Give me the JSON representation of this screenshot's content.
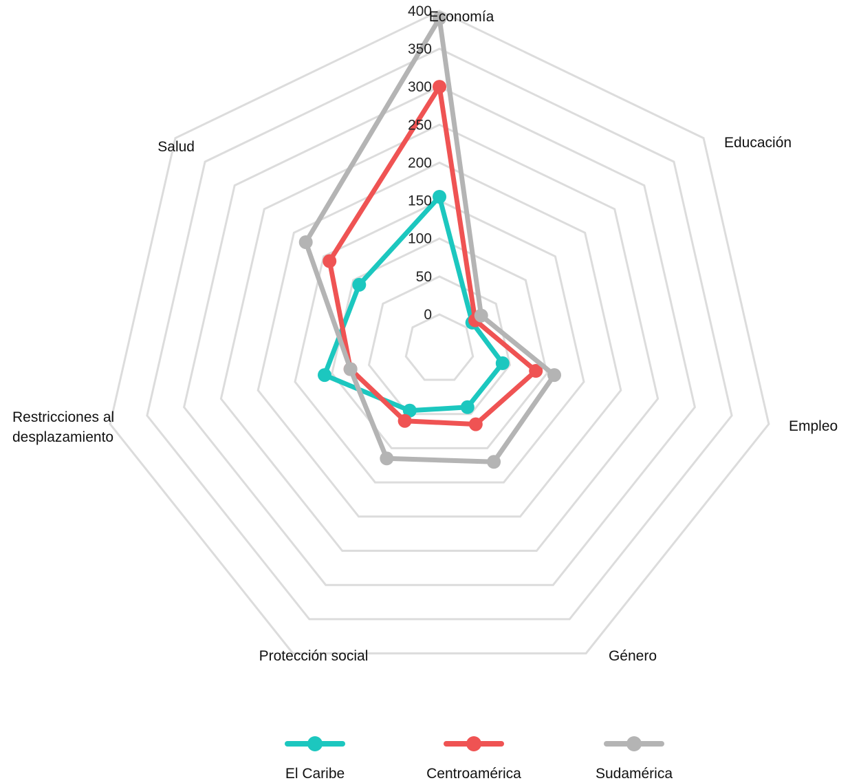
{
  "chart_data": {
    "type": "radar",
    "axes": [
      "Economía",
      "Educación",
      "Empleo",
      "Género",
      "Protección social",
      "Restricciones al desplazamiento",
      "Salud"
    ],
    "axis_label_lines": [
      [
        "Economía"
      ],
      [
        "Educación"
      ],
      [
        "Empleo"
      ],
      [
        "Género"
      ],
      [
        "Protección social"
      ],
      [
        "Restricciones al",
        "desplazamiento"
      ],
      [
        "Salud"
      ]
    ],
    "range": [
      0,
      400
    ],
    "ticks": [
      "0",
      "50",
      "100",
      "150",
      "200",
      "250",
      "300",
      "350",
      "400"
    ],
    "series": [
      {
        "name": "El Caribe",
        "color": "#1cc7bf",
        "values": [
          155,
          10,
          40,
          40,
          45,
          110,
          90
        ]
      },
      {
        "name": "Centroamérica",
        "color": "#ef5353",
        "values": [
          300,
          15,
          85,
          65,
          60,
          75,
          140
        ]
      },
      {
        "name": "Sudamérica",
        "color": "#b4b4b4",
        "values": [
          390,
          25,
          110,
          120,
          115,
          75,
          180
        ]
      }
    ],
    "grid": true,
    "legend": "bottom"
  }
}
